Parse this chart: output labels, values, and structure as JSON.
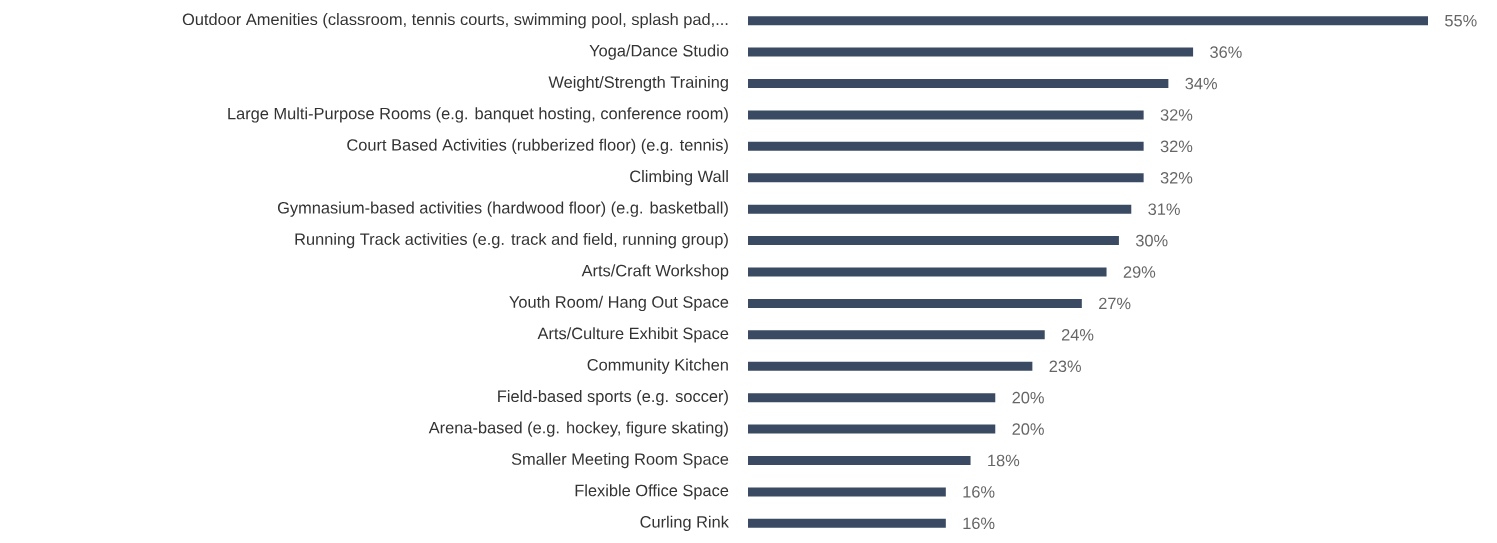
{
  "chart_data": {
    "type": "bar",
    "orientation": "horizontal",
    "categories": [
      "Outdoor Amenities (classroom, tennis courts, swimming pool, splash pad,...",
      "Yoga/Dance Studio",
      "Weight/Strength Training",
      "Large Multi-Purpose Rooms (e.g. banquet hosting, conference room)",
      "Court Based Activities (rubberized floor) (e.g. tennis)",
      "Climbing Wall",
      "Gymnasium-based activities (hardwood floor) (e.g. basketball)",
      "Running Track activities (e.g. track and field, running group)",
      "Arts/Craft Workshop",
      "Youth Room/ Hang Out Space",
      "Arts/Culture Exhibit Space",
      "Community Kitchen",
      "Field-based sports (e.g. soccer)",
      "Arena-based (e.g. hockey, figure skating)",
      "Smaller Meeting Room Space",
      "Flexible Office Space",
      "Curling Rink"
    ],
    "values": [
      55,
      36,
      34,
      32,
      32,
      32,
      31,
      30,
      29,
      27,
      24,
      23,
      20,
      20,
      18,
      16,
      16
    ],
    "value_labels": [
      "55%",
      "36%",
      "34%",
      "32%",
      "32%",
      "32%",
      "31%",
      "30%",
      "29%",
      "27%",
      "24%",
      "23%",
      "20%",
      "20%",
      "18%",
      "16%",
      "16%"
    ],
    "color": "#3b4a63"
  }
}
